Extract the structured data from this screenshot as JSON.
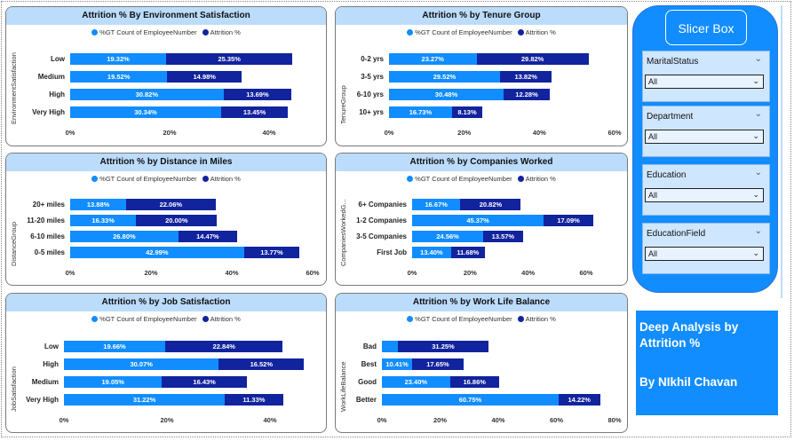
{
  "colors": {
    "gt_count": "#118dff",
    "attrition": "#12239e",
    "title_bg": "#bcdcfc",
    "slicer_bg": "#118dff"
  },
  "legend": {
    "gt_label": "%GT Count of EmployeeNumber",
    "attr_label": "Attrition %"
  },
  "slicer_box": {
    "title": "Slicer Box",
    "slicers": [
      {
        "label": "MaritalStatus",
        "value": "All"
      },
      {
        "label": "Department",
        "value": "All"
      },
      {
        "label": "Education",
        "value": "All"
      },
      {
        "label": "EducationField",
        "value": "All"
      }
    ]
  },
  "info": {
    "line1": "Deep Analysis by",
    "line2": "Attrition %",
    "line3": "By NIkhil Chavan"
  },
  "chart_data": [
    {
      "id": "env",
      "type": "bar",
      "title": "Attrition % By Environment Satisfaction",
      "ylabel": "EnvironmentSatisfaction",
      "xlim": [
        0,
        50
      ],
      "categories": [
        "Low",
        "Medium",
        "High",
        "Very High"
      ],
      "series": [
        {
          "name": "%GT Count of EmployeeNumber",
          "values": [
            19.32,
            19.52,
            30.82,
            30.34
          ],
          "labels": [
            "19.32%",
            "19.52%",
            "30.82%",
            "30.34%"
          ]
        },
        {
          "name": "Attrition %",
          "values": [
            25.35,
            14.98,
            13.69,
            13.45
          ],
          "labels": [
            "25.35%",
            "14.98%",
            "13.69%",
            "13.45%"
          ]
        }
      ],
      "ticks": [
        "0%",
        "20%",
        "40%"
      ],
      "tick_values": [
        0,
        20,
        40
      ]
    },
    {
      "id": "tenure",
      "type": "bar",
      "title": "Attrition % by Tenure Group",
      "ylabel": "TenureGroup",
      "xlim": [
        0,
        60
      ],
      "categories": [
        "0-2 yrs",
        "3-5 yrs",
        "6-10 yrs",
        "10+ yrs"
      ],
      "series": [
        {
          "name": "%GT Count of EmployeeNumber",
          "values": [
            23.27,
            29.52,
            30.48,
            16.73
          ],
          "labels": [
            "23.27%",
            "29.52%",
            "30.48%",
            "16.73%"
          ]
        },
        {
          "name": "Attrition %",
          "values": [
            29.82,
            13.82,
            12.28,
            8.13
          ],
          "labels": [
            "29.82%",
            "13.82%",
            "12.28%",
            "8.13%"
          ]
        }
      ],
      "ticks": [
        "0%",
        "20%",
        "40%",
        "60%"
      ],
      "tick_values": [
        0,
        20,
        40,
        60
      ]
    },
    {
      "id": "distance",
      "type": "bar",
      "title": "Attrition % by Distance in Miles",
      "ylabel": "DistanceGroup",
      "xlim": [
        0,
        60
      ],
      "categories": [
        "20+ miles",
        "11-20 miles",
        "6-10 miles",
        "0-5 miles"
      ],
      "series": [
        {
          "name": "%GT Count of EmployeeNumber",
          "values": [
            13.88,
            16.33,
            26.8,
            42.99
          ],
          "labels": [
            "13.88%",
            "16.33%",
            "26.80%",
            "42.99%"
          ]
        },
        {
          "name": "Attrition %",
          "values": [
            22.06,
            20.0,
            14.47,
            13.77
          ],
          "labels": [
            "22.06%",
            "20.00%",
            "14.47%",
            "13.77%"
          ]
        }
      ],
      "ticks": [
        "0%",
        "20%",
        "40%",
        "60%"
      ],
      "tick_values": [
        0,
        20,
        40,
        60
      ]
    },
    {
      "id": "companies",
      "type": "bar",
      "title": "Attrition % by Companies Worked",
      "ylabel": "CompaniesWorkedG...",
      "xlim": [
        0,
        60
      ],
      "categories": [
        "6+ Companies",
        "1-2 Companies",
        "3-5 Companies",
        "First Job"
      ],
      "series": [
        {
          "name": "%GT Count of EmployeeNumber",
          "values": [
            16.67,
            45.37,
            24.56,
            13.4
          ],
          "labels": [
            "16.67%",
            "45.37%",
            "24.56%",
            "13.40%"
          ]
        },
        {
          "name": "Attrition %",
          "values": [
            20.82,
            17.09,
            13.57,
            11.68
          ],
          "labels": [
            "20.82%",
            "17.09%",
            "13.57%",
            "11.68%"
          ]
        }
      ],
      "ticks": [
        "0%",
        "20%",
        "40%",
        "60%"
      ],
      "tick_values": [
        0,
        20,
        40,
        60
      ]
    },
    {
      "id": "job",
      "type": "bar",
      "title": "Attrition % by Job Satisfaction",
      "ylabel": "JobSatisfaction",
      "xlim": [
        0,
        50
      ],
      "categories": [
        "Low",
        "High",
        "Medium",
        "Very High"
      ],
      "series": [
        {
          "name": "%GT Count of EmployeeNumber",
          "values": [
            19.66,
            30.07,
            19.05,
            31.22
          ],
          "labels": [
            "19.66%",
            "30.07%",
            "19.05%",
            "31.22%"
          ]
        },
        {
          "name": "Attrition %",
          "values": [
            22.84,
            16.52,
            16.43,
            11.33
          ],
          "labels": [
            "22.84%",
            "16.52%",
            "16.43%",
            "11.33%"
          ]
        }
      ],
      "ticks": [
        "0%",
        "20%",
        "40%"
      ],
      "tick_values": [
        0,
        20,
        40
      ]
    },
    {
      "id": "wlb",
      "type": "bar",
      "title": "Attrition % by Work Life Balance",
      "ylabel": "WorkLifeBalance",
      "xlim": [
        0,
        80
      ],
      "categories": [
        "Bad",
        "Best",
        "Good",
        "Better"
      ],
      "series": [
        {
          "name": "%GT Count of EmployeeNumber",
          "values": [
            5.44,
            10.41,
            23.4,
            60.75
          ],
          "labels": [
            "",
            "10.41%",
            "23.40%",
            "60.75%"
          ]
        },
        {
          "name": "Attrition %",
          "values": [
            31.25,
            17.65,
            16.86,
            14.22
          ],
          "labels": [
            "31.25%",
            "17.65%",
            "16.86%",
            "14.22%"
          ]
        }
      ],
      "ticks": [
        "0%",
        "20%",
        "40%",
        "60%",
        "80%"
      ],
      "tick_values": [
        0,
        20,
        40,
        60,
        80
      ]
    }
  ]
}
